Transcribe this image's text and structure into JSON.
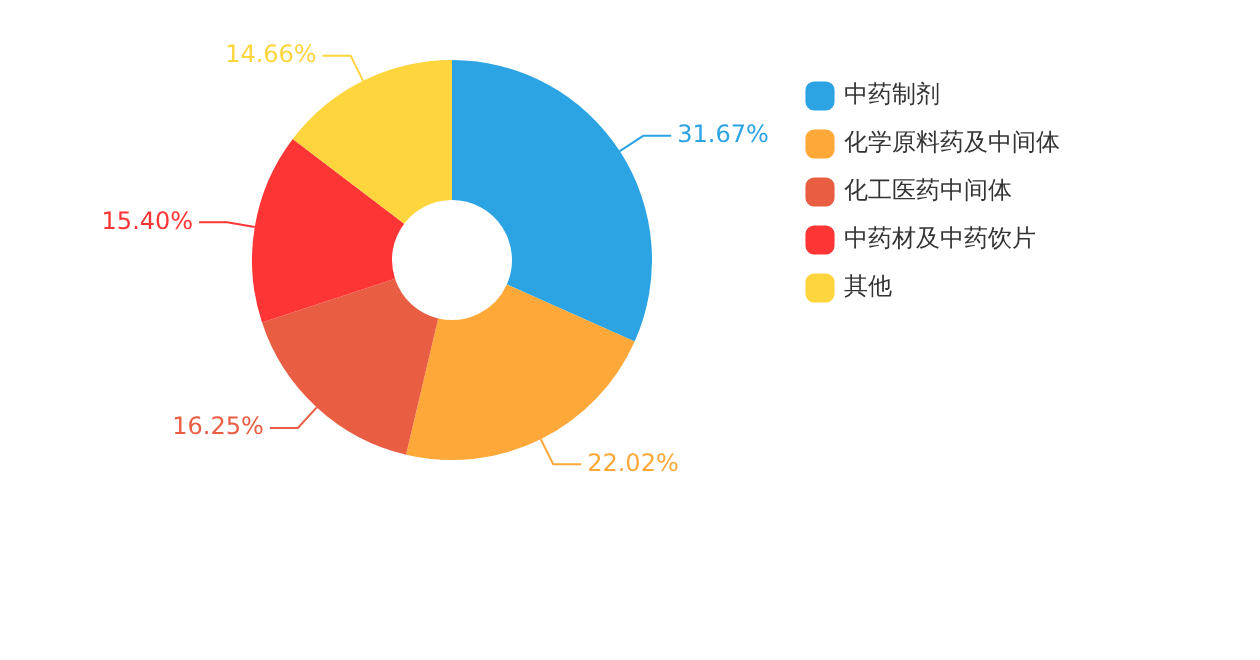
{
  "chart_data": {
    "type": "donut",
    "categories": [
      "中药制剂",
      "化学原料药及中间体",
      "化工医药中间体",
      "中药材及中药饮片",
      "其他"
    ],
    "values": [
      31.67,
      22.02,
      16.25,
      15.4,
      14.66
    ],
    "value_labels": [
      "31.67%",
      "22.02%",
      "16.25%",
      "15.40%",
      "14.66%"
    ],
    "colors": [
      "#2ca4e4",
      "#fea83a",
      "#e95e43",
      "#fd3535",
      "#fed53c"
    ],
    "legend": "top right"
  }
}
